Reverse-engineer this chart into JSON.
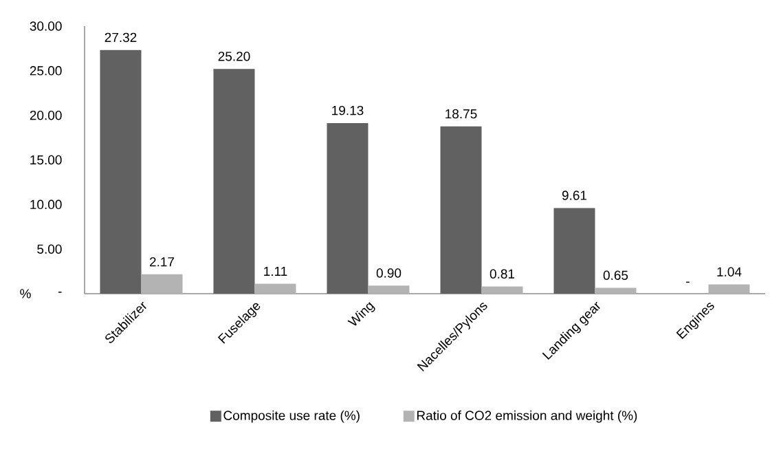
{
  "chart_data": {
    "type": "bar",
    "ylabel": "%",
    "categories": [
      "Stabilizer",
      "Fuselage",
      "Wing",
      "Nacelles/Pylons",
      "Landing gear",
      "Engines"
    ],
    "series": [
      {
        "name": "Composite use rate (%)",
        "color": "#616161",
        "values": [
          27.32,
          25.2,
          19.13,
          18.75,
          9.61,
          0
        ],
        "value_labels": [
          "27.32",
          "25.20",
          "19.13",
          "18.75",
          "9.61",
          "-"
        ]
      },
      {
        "name": "Ratio of CO2 emission and weight (%)",
        "color": "#b3b3b3",
        "values": [
          2.17,
          1.11,
          0.9,
          0.81,
          0.65,
          1.04
        ],
        "value_labels": [
          "2.17",
          "1.11",
          "0.90",
          "0.81",
          "0.65",
          "1.04"
        ]
      }
    ],
    "ylim": [
      0,
      30
    ],
    "yticks": [
      {
        "value": 0,
        "label": "-"
      },
      {
        "value": 5,
        "label": "5.00"
      },
      {
        "value": 10,
        "label": "10.00"
      },
      {
        "value": 15,
        "label": "15.00"
      },
      {
        "value": 20,
        "label": "20.00"
      },
      {
        "value": 25,
        "label": "25.00"
      },
      {
        "value": 30,
        "label": "30.00"
      }
    ],
    "grid": false,
    "legend": "bottom"
  }
}
